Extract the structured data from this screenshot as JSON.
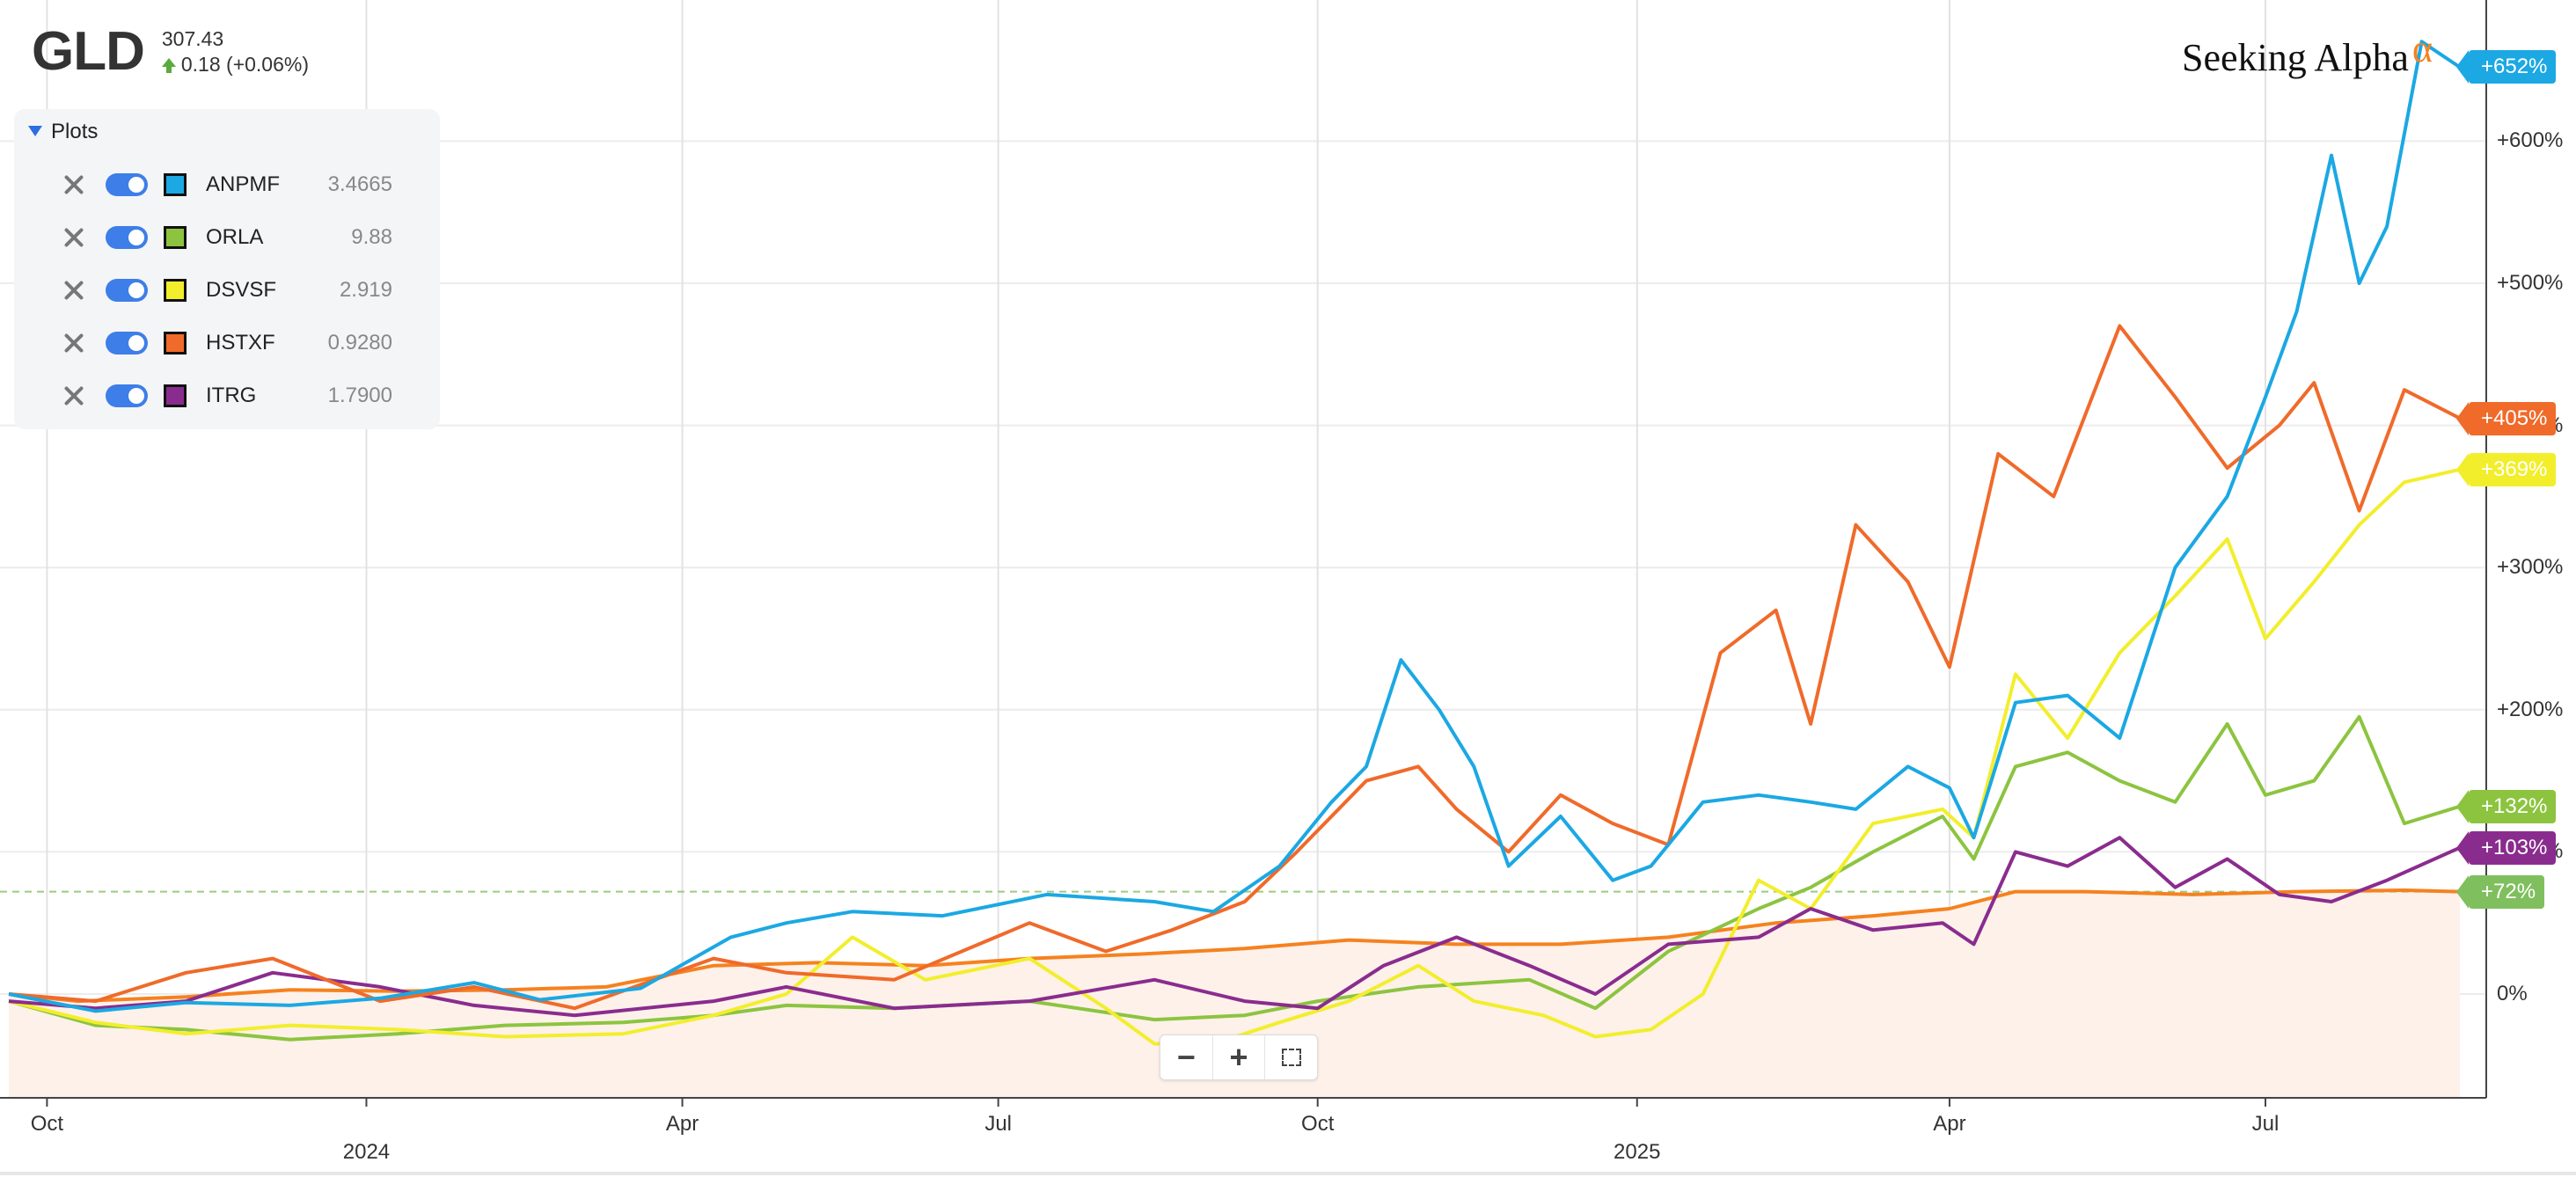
{
  "header": {
    "ticker": "GLD",
    "price": "307.43",
    "change": "0.18 (+0.06%)"
  },
  "plots": {
    "title": "Plots",
    "items": [
      {
        "symbol": "ANPMF",
        "value": "3.4665",
        "color": "#1ba8e3"
      },
      {
        "symbol": "ORLA",
        "value": "9.88",
        "color": "#8cc43f"
      },
      {
        "symbol": "DSVSF",
        "value": "2.919",
        "color": "#f2ee2c"
      },
      {
        "symbol": "HSTXF",
        "value": "0.9280",
        "color": "#f06a2a"
      },
      {
        "symbol": "ITRG",
        "value": "1.7900",
        "color": "#8a2c8e"
      }
    ]
  },
  "logo": {
    "text": "Seeking Alpha",
    "alpha": "α"
  },
  "zoom": {
    "minus": "−",
    "plus": "+"
  },
  "badges": [
    {
      "text": "+652%",
      "value": 652,
      "color": "#1ba8e3"
    },
    {
      "text": "+405%",
      "value": 405,
      "color": "#f06a2a"
    },
    {
      "text": "+369%",
      "value": 369,
      "color": "#f2ee2c"
    },
    {
      "text": "+132%",
      "value": 132,
      "color": "#8cc43f"
    },
    {
      "text": "+103%",
      "value": 103,
      "color": "#8a2c8e"
    },
    {
      "text": "+72%",
      "value": 72,
      "color": "#7fbf5e"
    }
  ],
  "chart_data": {
    "type": "line",
    "title": "",
    "y_ticks": [
      "+600%",
      "+500%",
      "+400%",
      "+300%",
      "+200%",
      "+100%",
      "0%"
    ],
    "y_tick_values": [
      600,
      500,
      400,
      300,
      200,
      100,
      0
    ],
    "x_ticks": [
      "Oct",
      "Apr",
      "Jul",
      "Oct",
      "Apr",
      "Jul"
    ],
    "x_tick_dates": [
      "2023-10-01",
      "2024-04-01",
      "2024-07-01",
      "2024-10-01",
      "2025-04-01",
      "2025-07-01"
    ],
    "year_labels": [
      "2024",
      "2025"
    ],
    "year_dates": [
      "2024-01-01",
      "2025-01-01"
    ],
    "x_range": [
      "2023-09-20",
      "2025-08-26"
    ],
    "y_range": [
      -75,
      690
    ],
    "reference_line": {
      "value": 72,
      "label": "+72%",
      "color": "#7fbf5e"
    },
    "area_series": "GLD",
    "series": [
      {
        "name": "ANPMF",
        "color": "#1ba8e3",
        "points": [
          [
            "2023-09-20",
            0
          ],
          [
            "2023-10-15",
            -12
          ],
          [
            "2023-11-10",
            -6
          ],
          [
            "2023-12-10",
            -8
          ],
          [
            "2024-01-05",
            -3
          ],
          [
            "2024-02-01",
            8
          ],
          [
            "2024-02-20",
            -4
          ],
          [
            "2024-03-20",
            4
          ],
          [
            "2024-04-15",
            40
          ],
          [
            "2024-05-01",
            50
          ],
          [
            "2024-05-20",
            58
          ],
          [
            "2024-06-15",
            55
          ],
          [
            "2024-07-15",
            70
          ],
          [
            "2024-08-15",
            65
          ],
          [
            "2024-09-01",
            58
          ],
          [
            "2024-09-20",
            90
          ],
          [
            "2024-10-05",
            135
          ],
          [
            "2024-10-15",
            160
          ],
          [
            "2024-10-25",
            235
          ],
          [
            "2024-11-05",
            200
          ],
          [
            "2024-11-15",
            160
          ],
          [
            "2024-11-25",
            90
          ],
          [
            "2024-12-10",
            125
          ],
          [
            "2024-12-25",
            80
          ],
          [
            "2025-01-05",
            90
          ],
          [
            "2025-01-20",
            135
          ],
          [
            "2025-02-05",
            140
          ],
          [
            "2025-02-20",
            135
          ],
          [
            "2025-03-05",
            130
          ],
          [
            "2025-03-20",
            160
          ],
          [
            "2025-04-01",
            145
          ],
          [
            "2025-04-08",
            110
          ],
          [
            "2025-04-20",
            205
          ],
          [
            "2025-05-05",
            210
          ],
          [
            "2025-05-20",
            180
          ],
          [
            "2025-06-05",
            300
          ],
          [
            "2025-06-20",
            350
          ],
          [
            "2025-07-01",
            420
          ],
          [
            "2025-07-10",
            480
          ],
          [
            "2025-07-20",
            590
          ],
          [
            "2025-07-28",
            500
          ],
          [
            "2025-08-05",
            540
          ],
          [
            "2025-08-15",
            670
          ],
          [
            "2025-08-26",
            652
          ]
        ]
      },
      {
        "name": "HSTXF",
        "color": "#f06a2a",
        "points": [
          [
            "2023-09-20",
            0
          ],
          [
            "2023-10-15",
            -5
          ],
          [
            "2023-11-10",
            15
          ],
          [
            "2023-12-05",
            25
          ],
          [
            "2024-01-05",
            -5
          ],
          [
            "2024-02-01",
            5
          ],
          [
            "2024-03-01",
            -10
          ],
          [
            "2024-04-10",
            25
          ],
          [
            "2024-05-01",
            15
          ],
          [
            "2024-06-01",
            10
          ],
          [
            "2024-07-10",
            50
          ],
          [
            "2024-08-01",
            30
          ],
          [
            "2024-08-20",
            45
          ],
          [
            "2024-09-10",
            65
          ],
          [
            "2024-09-25",
            100
          ],
          [
            "2024-10-15",
            150
          ],
          [
            "2024-10-30",
            160
          ],
          [
            "2024-11-10",
            130
          ],
          [
            "2024-11-25",
            100
          ],
          [
            "2024-12-10",
            140
          ],
          [
            "2024-12-25",
            120
          ],
          [
            "2025-01-10",
            105
          ],
          [
            "2025-01-25",
            240
          ],
          [
            "2025-02-10",
            270
          ],
          [
            "2025-02-20",
            190
          ],
          [
            "2025-03-05",
            330
          ],
          [
            "2025-03-20",
            290
          ],
          [
            "2025-04-01",
            230
          ],
          [
            "2025-04-15",
            380
          ],
          [
            "2025-05-01",
            350
          ],
          [
            "2025-05-20",
            470
          ],
          [
            "2025-06-05",
            420
          ],
          [
            "2025-06-20",
            370
          ],
          [
            "2025-07-05",
            400
          ],
          [
            "2025-07-15",
            430
          ],
          [
            "2025-07-28",
            340
          ],
          [
            "2025-08-10",
            425
          ],
          [
            "2025-08-26",
            405
          ]
        ]
      },
      {
        "name": "DSVSF",
        "color": "#f2ee2c",
        "points": [
          [
            "2023-09-20",
            -5
          ],
          [
            "2023-10-15",
            -20
          ],
          [
            "2023-11-10",
            -28
          ],
          [
            "2023-12-10",
            -22
          ],
          [
            "2024-01-10",
            -25
          ],
          [
            "2024-02-10",
            -30
          ],
          [
            "2024-03-15",
            -28
          ],
          [
            "2024-04-10",
            -15
          ],
          [
            "2024-05-01",
            0
          ],
          [
            "2024-05-20",
            40
          ],
          [
            "2024-06-10",
            10
          ],
          [
            "2024-07-10",
            25
          ],
          [
            "2024-08-01",
            -10
          ],
          [
            "2024-08-15",
            -35
          ],
          [
            "2024-09-01",
            -35
          ],
          [
            "2024-09-20",
            -20
          ],
          [
            "2024-10-10",
            -5
          ],
          [
            "2024-10-30",
            20
          ],
          [
            "2024-11-15",
            -5
          ],
          [
            "2024-12-05",
            -15
          ],
          [
            "2024-12-20",
            -30
          ],
          [
            "2025-01-05",
            -25
          ],
          [
            "2025-01-20",
            0
          ],
          [
            "2025-02-05",
            80
          ],
          [
            "2025-02-20",
            60
          ],
          [
            "2025-03-10",
            120
          ],
          [
            "2025-03-30",
            130
          ],
          [
            "2025-04-08",
            110
          ],
          [
            "2025-04-20",
            225
          ],
          [
            "2025-05-05",
            180
          ],
          [
            "2025-05-20",
            240
          ],
          [
            "2025-06-05",
            280
          ],
          [
            "2025-06-20",
            320
          ],
          [
            "2025-07-01",
            250
          ],
          [
            "2025-07-15",
            290
          ],
          [
            "2025-07-28",
            330
          ],
          [
            "2025-08-10",
            360
          ],
          [
            "2025-08-26",
            369
          ]
        ]
      },
      {
        "name": "ORLA",
        "color": "#8cc43f",
        "points": [
          [
            "2023-09-20",
            -5
          ],
          [
            "2023-10-15",
            -22
          ],
          [
            "2023-11-10",
            -25
          ],
          [
            "2023-12-10",
            -32
          ],
          [
            "2024-01-10",
            -28
          ],
          [
            "2024-02-10",
            -22
          ],
          [
            "2024-03-15",
            -20
          ],
          [
            "2024-04-10",
            -15
          ],
          [
            "2024-05-01",
            -8
          ],
          [
            "2024-06-01",
            -10
          ],
          [
            "2024-07-10",
            -5
          ],
          [
            "2024-08-15",
            -18
          ],
          [
            "2024-09-10",
            -15
          ],
          [
            "2024-10-01",
            -5
          ],
          [
            "2024-10-30",
            5
          ],
          [
            "2024-12-01",
            10
          ],
          [
            "2024-12-20",
            -10
          ],
          [
            "2025-01-10",
            30
          ],
          [
            "2025-02-05",
            60
          ],
          [
            "2025-02-20",
            75
          ],
          [
            "2025-03-10",
            100
          ],
          [
            "2025-03-30",
            125
          ],
          [
            "2025-04-08",
            95
          ],
          [
            "2025-04-20",
            160
          ],
          [
            "2025-05-05",
            170
          ],
          [
            "2025-05-20",
            150
          ],
          [
            "2025-06-05",
            135
          ],
          [
            "2025-06-20",
            190
          ],
          [
            "2025-07-01",
            140
          ],
          [
            "2025-07-15",
            150
          ],
          [
            "2025-07-28",
            195
          ],
          [
            "2025-08-10",
            120
          ],
          [
            "2025-08-26",
            132
          ]
        ]
      },
      {
        "name": "ITRG",
        "color": "#8a2c8e",
        "points": [
          [
            "2023-09-20",
            -5
          ],
          [
            "2023-10-15",
            -10
          ],
          [
            "2023-11-10",
            -5
          ],
          [
            "2023-12-05",
            15
          ],
          [
            "2024-01-05",
            5
          ],
          [
            "2024-02-01",
            -8
          ],
          [
            "2024-03-01",
            -15
          ],
          [
            "2024-04-10",
            -5
          ],
          [
            "2024-05-01",
            5
          ],
          [
            "2024-06-01",
            -10
          ],
          [
            "2024-07-10",
            -5
          ],
          [
            "2024-08-15",
            10
          ],
          [
            "2024-09-10",
            -5
          ],
          [
            "2024-10-01",
            -10
          ],
          [
            "2024-10-20",
            20
          ],
          [
            "2024-11-10",
            40
          ],
          [
            "2024-12-01",
            20
          ],
          [
            "2024-12-20",
            0
          ],
          [
            "2025-01-10",
            35
          ],
          [
            "2025-02-05",
            40
          ],
          [
            "2025-02-20",
            60
          ],
          [
            "2025-03-10",
            45
          ],
          [
            "2025-03-30",
            50
          ],
          [
            "2025-04-08",
            35
          ],
          [
            "2025-04-20",
            100
          ],
          [
            "2025-05-05",
            90
          ],
          [
            "2025-05-20",
            110
          ],
          [
            "2025-06-05",
            75
          ],
          [
            "2025-06-20",
            95
          ],
          [
            "2025-07-05",
            70
          ],
          [
            "2025-07-20",
            65
          ],
          [
            "2025-08-05",
            80
          ],
          [
            "2025-08-26",
            103
          ]
        ]
      },
      {
        "name": "GLD",
        "color": "#f5821f",
        "points": [
          [
            "2023-09-20",
            0
          ],
          [
            "2023-10-10",
            -5
          ],
          [
            "2023-11-10",
            -2
          ],
          [
            "2023-12-10",
            3
          ],
          [
            "2024-01-10",
            2
          ],
          [
            "2024-02-10",
            3
          ],
          [
            "2024-03-10",
            5
          ],
          [
            "2024-04-10",
            20
          ],
          [
            "2024-05-10",
            22
          ],
          [
            "2024-06-10",
            20
          ],
          [
            "2024-07-10",
            25
          ],
          [
            "2024-08-10",
            28
          ],
          [
            "2024-09-10",
            32
          ],
          [
            "2024-10-10",
            38
          ],
          [
            "2024-11-10",
            35
          ],
          [
            "2024-12-10",
            35
          ],
          [
            "2025-01-10",
            40
          ],
          [
            "2025-02-10",
            50
          ],
          [
            "2025-03-10",
            55
          ],
          [
            "2025-04-01",
            60
          ],
          [
            "2025-04-20",
            72
          ],
          [
            "2025-05-10",
            72
          ],
          [
            "2025-06-10",
            70
          ],
          [
            "2025-07-10",
            72
          ],
          [
            "2025-08-10",
            73
          ],
          [
            "2025-08-26",
            72
          ]
        ]
      }
    ]
  }
}
